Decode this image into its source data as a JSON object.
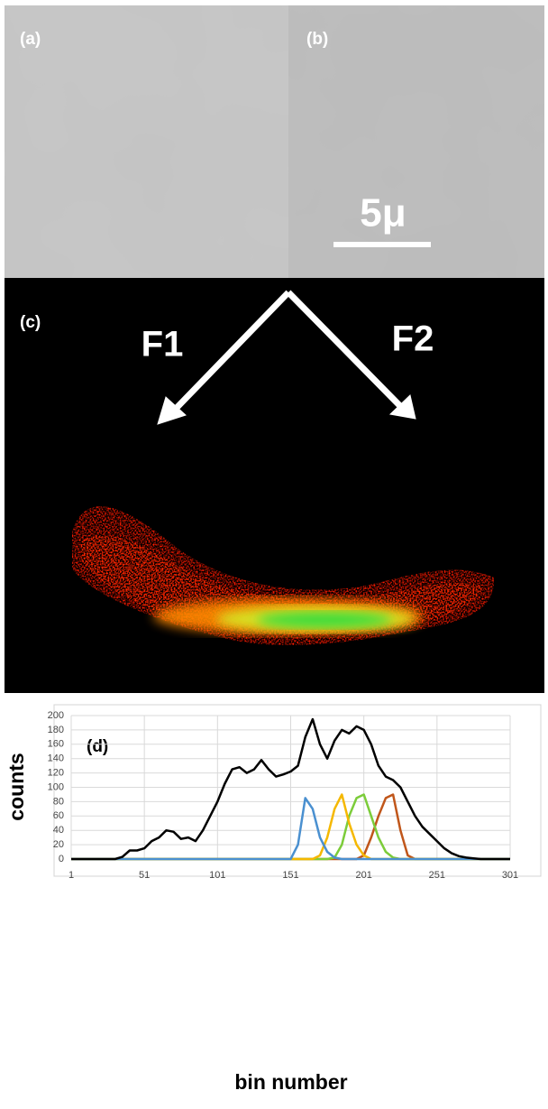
{
  "panels": {
    "a": "(a)",
    "b": "(b)",
    "scale_bar": "5μ",
    "c": "(c)",
    "f1": "F1",
    "f2": "F2"
  },
  "chart_data": {
    "type": "line",
    "annotation": "(d)",
    "xlabel": "bin number",
    "ylabel": "counts",
    "x": [
      1,
      6,
      11,
      16,
      21,
      26,
      31,
      36,
      41,
      46,
      51,
      56,
      61,
      66,
      71,
      76,
      81,
      86,
      91,
      96,
      101,
      106,
      111,
      116,
      121,
      126,
      131,
      136,
      141,
      146,
      151,
      156,
      161,
      166,
      171,
      176,
      181,
      186,
      191,
      196,
      201,
      206,
      211,
      216,
      221,
      226,
      231,
      236,
      241,
      246,
      251,
      256,
      261,
      266,
      271,
      276,
      281,
      286,
      291,
      296,
      301
    ],
    "series": [
      {
        "color": "#000000",
        "values": [
          0,
          0,
          0,
          0,
          0,
          0,
          0,
          3,
          12,
          12,
          15,
          25,
          30,
          40,
          38,
          28,
          30,
          25,
          40,
          60,
          80,
          105,
          125,
          128,
          120,
          125,
          138,
          125,
          115,
          118,
          122,
          130,
          170,
          195,
          160,
          140,
          165,
          180,
          175,
          185,
          180,
          160,
          130,
          115,
          110,
          100,
          80,
          60,
          45,
          35,
          25,
          15,
          8,
          4,
          2,
          1,
          0,
          0,
          0,
          0,
          0
        ]
      },
      {
        "color": "#4a90d0",
        "values": [
          0,
          0,
          0,
          0,
          0,
          0,
          0,
          0,
          0,
          0,
          0,
          0,
          0,
          0,
          0,
          0,
          0,
          0,
          0,
          0,
          0,
          0,
          0,
          0,
          0,
          0,
          0,
          0,
          0,
          0,
          0,
          20,
          85,
          70,
          30,
          10,
          2,
          0,
          0,
          0,
          0,
          0,
          0,
          0,
          0,
          0,
          0,
          0,
          0,
          0,
          0,
          0,
          0,
          0,
          0,
          0,
          0,
          0,
          0,
          0,
          0
        ]
      },
      {
        "color": "#f5b800",
        "values": [
          0,
          0,
          0,
          0,
          0,
          0,
          0,
          0,
          0,
          0,
          0,
          0,
          0,
          0,
          0,
          0,
          0,
          0,
          0,
          0,
          0,
          0,
          0,
          0,
          0,
          0,
          0,
          0,
          0,
          0,
          0,
          0,
          0,
          0,
          5,
          30,
          70,
          90,
          50,
          20,
          5,
          0,
          0,
          0,
          0,
          0,
          0,
          0,
          0,
          0,
          0,
          0,
          0,
          0,
          0,
          0,
          0,
          0,
          0,
          0,
          0
        ]
      },
      {
        "color": "#7ccc3a",
        "values": [
          0,
          0,
          0,
          0,
          0,
          0,
          0,
          0,
          0,
          0,
          0,
          0,
          0,
          0,
          0,
          0,
          0,
          0,
          0,
          0,
          0,
          0,
          0,
          0,
          0,
          0,
          0,
          0,
          0,
          0,
          0,
          0,
          0,
          0,
          0,
          0,
          2,
          20,
          60,
          85,
          90,
          60,
          30,
          10,
          2,
          0,
          0,
          0,
          0,
          0,
          0,
          0,
          0,
          0,
          0,
          0,
          0,
          0,
          0,
          0,
          0
        ]
      },
      {
        "color": "#c0561a",
        "values": [
          0,
          0,
          0,
          0,
          0,
          0,
          0,
          0,
          0,
          0,
          0,
          0,
          0,
          0,
          0,
          0,
          0,
          0,
          0,
          0,
          0,
          0,
          0,
          0,
          0,
          0,
          0,
          0,
          0,
          0,
          0,
          0,
          0,
          0,
          0,
          0,
          0,
          0,
          0,
          0,
          5,
          30,
          60,
          85,
          90,
          40,
          5,
          0,
          0,
          0,
          0,
          0,
          0,
          0,
          0,
          0,
          0,
          0,
          0,
          0,
          0
        ]
      }
    ],
    "xlim": [
      1,
      301
    ],
    "xticks": [
      1,
      51,
      101,
      151,
      201,
      251,
      301
    ],
    "ylim": [
      0,
      200
    ],
    "yticks": [
      0,
      20,
      40,
      60,
      80,
      100,
      120,
      140,
      160,
      180,
      200
    ],
    "grid": true
  }
}
